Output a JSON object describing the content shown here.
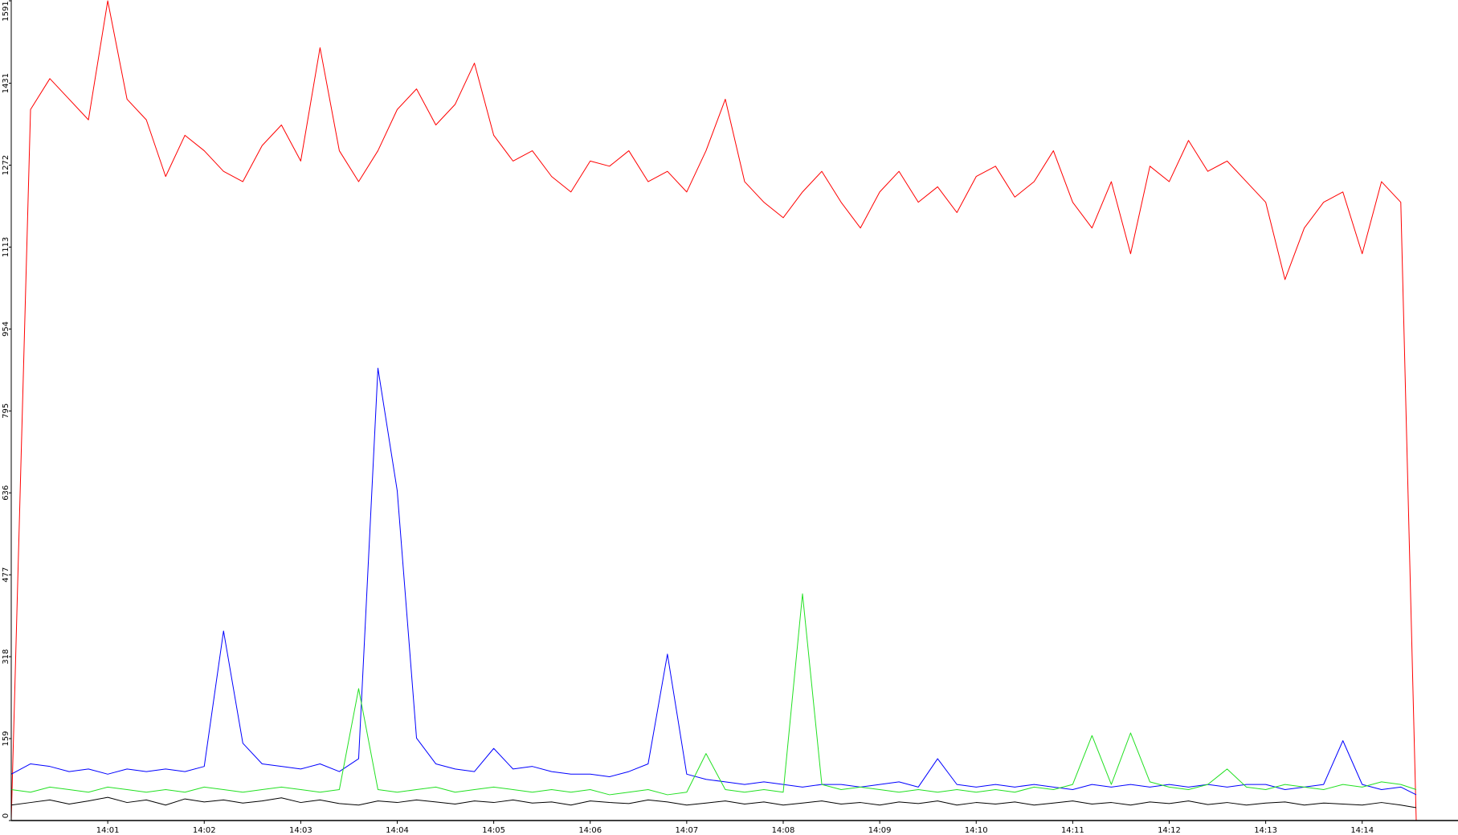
{
  "chart_data": {
    "type": "line",
    "x": [
      840,
      840.2,
      840.4,
      840.6,
      840.8,
      841,
      841.2,
      841.4,
      841.6,
      841.8,
      842,
      842.2,
      842.4,
      842.6,
      842.8,
      843,
      843.2,
      843.4,
      843.6,
      843.8,
      844,
      844.2,
      844.4,
      844.6,
      844.8,
      845,
      845.2,
      845.4,
      845.6,
      845.8,
      846,
      846.2,
      846.4,
      846.6,
      846.8,
      847,
      847.2,
      847.4,
      847.6,
      847.8,
      848,
      848.2,
      848.4,
      848.6,
      848.8,
      849,
      849.2,
      849.4,
      849.6,
      849.8,
      850,
      850.2,
      850.4,
      850.6,
      850.8,
      851,
      851.2,
      851.4,
      851.6,
      851.8,
      852,
      852.2,
      852.4,
      852.6,
      852.8,
      853,
      853.2,
      853.4,
      853.6,
      853.8,
      854,
      854.2,
      854.4,
      854.56
    ],
    "series": [
      {
        "color": "#ff0000",
        "values": [
          0,
          1380,
          1440,
          1400,
          1360,
          1591,
          1400,
          1360,
          1250,
          1330,
          1300,
          1260,
          1240,
          1310,
          1350,
          1280,
          1500,
          1300,
          1240,
          1300,
          1380,
          1420,
          1350,
          1390,
          1470,
          1330,
          1280,
          1300,
          1250,
          1220,
          1280,
          1270,
          1300,
          1240,
          1260,
          1220,
          1300,
          1400,
          1240,
          1200,
          1170,
          1220,
          1260,
          1200,
          1150,
          1220,
          1260,
          1200,
          1230,
          1180,
          1250,
          1270,
          1210,
          1240,
          1300,
          1200,
          1150,
          1240,
          1100,
          1270,
          1240,
          1320,
          1260,
          1280,
          1240,
          1200,
          1050,
          1150,
          1200,
          1220,
          1100,
          1240,
          1200,
          0
        ]
      },
      {
        "color": "#0000ff",
        "values": [
          90,
          110,
          105,
          95,
          100,
          90,
          100,
          95,
          100,
          95,
          105,
          368,
          150,
          110,
          105,
          100,
          110,
          95,
          120,
          878,
          640,
          160,
          110,
          100,
          95,
          140,
          100,
          105,
          95,
          90,
          90,
          85,
          95,
          110,
          323,
          90,
          80,
          75,
          70,
          75,
          70,
          65,
          70,
          70,
          65,
          70,
          75,
          65,
          120,
          70,
          65,
          70,
          65,
          70,
          65,
          60,
          70,
          65,
          70,
          65,
          70,
          65,
          70,
          65,
          70,
          70,
          60,
          65,
          70,
          155,
          70,
          60,
          65,
          50
        ]
      },
      {
        "color": "#22e022",
        "values": [
          60,
          55,
          65,
          60,
          55,
          65,
          60,
          55,
          60,
          55,
          65,
          60,
          55,
          60,
          65,
          60,
          55,
          60,
          256,
          60,
          55,
          60,
          65,
          55,
          60,
          65,
          60,
          55,
          60,
          55,
          60,
          50,
          55,
          60,
          50,
          55,
          130,
          60,
          55,
          60,
          55,
          440,
          70,
          60,
          65,
          60,
          55,
          60,
          55,
          60,
          55,
          60,
          55,
          65,
          60,
          70,
          165,
          70,
          170,
          75,
          65,
          60,
          70,
          100,
          65,
          60,
          70,
          65,
          60,
          70,
          65,
          75,
          70,
          60
        ]
      },
      {
        "color": "#000000",
        "values": [
          30,
          35,
          40,
          32,
          38,
          45,
          35,
          40,
          30,
          42,
          36,
          40,
          34,
          38,
          44,
          35,
          40,
          33,
          30,
          38,
          35,
          40,
          36,
          32,
          38,
          35,
          40,
          34,
          36,
          30,
          38,
          35,
          33,
          40,
          36,
          30,
          34,
          38,
          32,
          36,
          30,
          34,
          38,
          32,
          35,
          30,
          36,
          33,
          38,
          30,
          35,
          32,
          36,
          30,
          34,
          38,
          32,
          35,
          30,
          36,
          33,
          38,
          31,
          35,
          30,
          34,
          36,
          30,
          34,
          32,
          30,
          35,
          30,
          25
        ]
      }
    ],
    "xlim": [
      840,
      854.56
    ],
    "xticks": [
      {
        "value": 841,
        "label": "14:01"
      },
      {
        "value": 842,
        "label": "14:02"
      },
      {
        "value": 843,
        "label": "14:03"
      },
      {
        "value": 844,
        "label": "14:04"
      },
      {
        "value": 845,
        "label": "14:05"
      },
      {
        "value": 846,
        "label": "14:06"
      },
      {
        "value": 847,
        "label": "14:07"
      },
      {
        "value": 848,
        "label": "14:08"
      },
      {
        "value": 849,
        "label": "14:09"
      },
      {
        "value": 850,
        "label": "14:10"
      },
      {
        "value": 851,
        "label": "14:11"
      },
      {
        "value": 852,
        "label": "14:12"
      },
      {
        "value": 853,
        "label": "14:13"
      },
      {
        "value": 854,
        "label": "14:14"
      }
    ],
    "ylim": [
      0,
      1591
    ],
    "yticks": [
      0,
      159,
      318,
      477,
      636,
      795,
      954,
      1113,
      1272,
      1431,
      1591
    ]
  }
}
